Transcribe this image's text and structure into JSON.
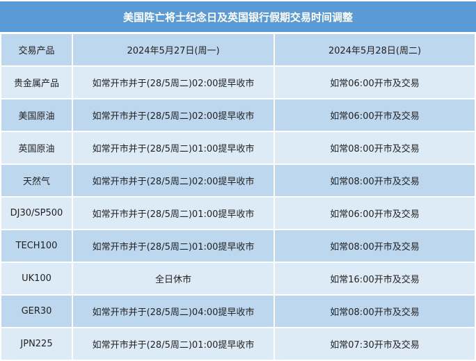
{
  "title": "美国阵亡将士纪念日及英国银行假期交易时间调整",
  "headers": [
    "交易产品",
    "2024年5月27日(周一)",
    "2024年5月28日(周二)"
  ],
  "rows": [
    [
      "贵金属产品",
      "如常开市并于(28/5周二)02:00提早收市",
      "如常06:00开市及交易"
    ],
    [
      "美国原油",
      "如常开市并于(28/5周二)02:00提早收市",
      "如常06:00开市及交易"
    ],
    [
      "英国原油",
      "如常开市并于(28/5周二)01:00提早收市",
      "如常08:00开市及交易"
    ],
    [
      "天然气",
      "如常开市并于(28/5周二)02:00提早收市",
      "如常08:00开市及交易"
    ],
    [
      "DJ30/SP500",
      "如常开市并于(28/5周二)01:00提早收市",
      "如常06:00开市及交易"
    ],
    [
      "TECH100",
      "如常开市并于(28/5周二)01:00提早收市",
      "如常08:00开市及交易"
    ],
    [
      "UK100",
      "全日休市",
      "如常16:00开市及交易"
    ],
    [
      "GER30",
      "如常开市并于(28/5周二)04:00提早收市",
      "如常08:00开市及交易"
    ],
    [
      "JPN225",
      "如常开市并于(28/5周二)01:00提早收市",
      "如常07:30开市及交易"
    ]
  ],
  "colors": {
    "title_bg": "#5b9bd5",
    "header_bg": "#bdd7ee",
    "row_light": "#ddebf7",
    "row_dark": "#bdd7ee"
  }
}
